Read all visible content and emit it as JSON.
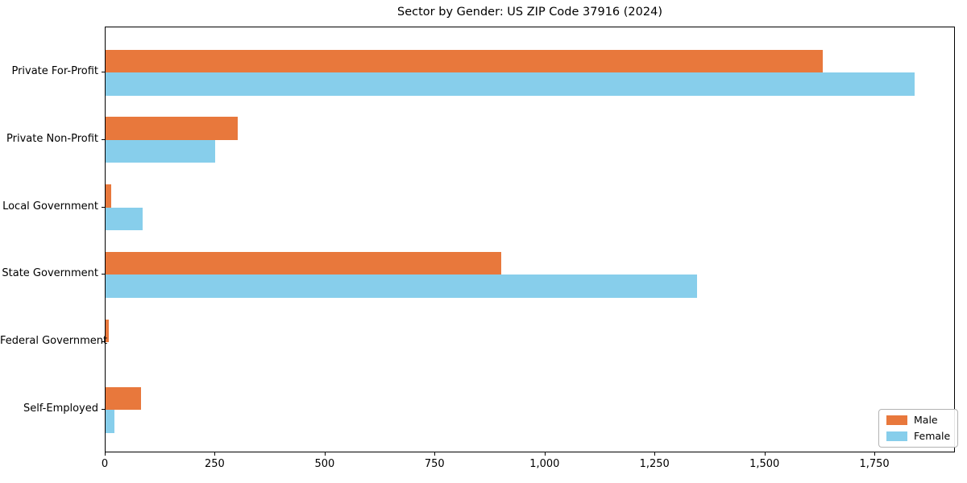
{
  "chart_data": {
    "type": "bar",
    "orientation": "horizontal",
    "title": "Sector by Gender: US ZIP Code 37916 (2024)",
    "xlabel": "",
    "ylabel": "",
    "categories": [
      "Private For-Profit",
      "Private Non-Profit",
      "Local Government",
      "State Government",
      "Federal Government",
      "Self-Employed"
    ],
    "series": [
      {
        "name": "Male",
        "color": "#e8783c",
        "values": [
          1630,
          300,
          13,
          900,
          8,
          80
        ]
      },
      {
        "name": "Female",
        "color": "#87ceeb",
        "values": [
          1840,
          250,
          85,
          1345,
          0,
          20
        ]
      }
    ],
    "xlim": [
      0,
      1933
    ],
    "xticks": [
      0,
      250,
      500,
      750,
      1000,
      1250,
      1500,
      1750
    ],
    "xtick_labels": [
      "0",
      "250",
      "500",
      "750",
      "1,000",
      "1,250",
      "1,500",
      "1,750"
    ],
    "grid": false,
    "legend": {
      "position": "lower right",
      "entries": [
        "Male",
        "Female"
      ]
    },
    "colors": {
      "background": "#ffffff",
      "axis": "#000000",
      "legend_border": "#b3b3b3"
    }
  }
}
